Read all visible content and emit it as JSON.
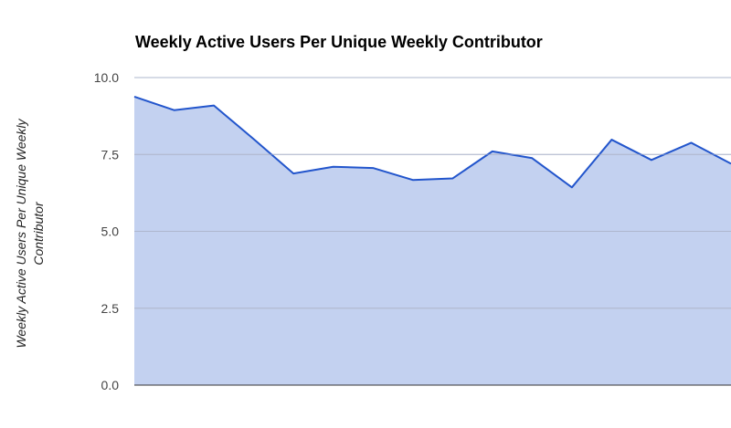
{
  "chart_data": {
    "type": "area",
    "title": "Weekly Active Users Per Unique Weekly Contributor",
    "xlabel": "",
    "ylabel": "Weekly Active Users Per Unique Weekly Contributor",
    "ylim": [
      0,
      10
    ],
    "yticks": [
      "0.0",
      "2.5",
      "5.0",
      "7.5",
      "10.0"
    ],
    "ytick_values": [
      0,
      2.5,
      5,
      7.5,
      10
    ],
    "grid": true,
    "legend": "none",
    "x": [
      1,
      2,
      3,
      4,
      5,
      6,
      7,
      8,
      9,
      10,
      11,
      12,
      13,
      14,
      15,
      16
    ],
    "series": [
      {
        "values": [
          9.38,
          8.94,
          9.09,
          8.0,
          6.88,
          7.1,
          7.06,
          6.67,
          6.72,
          7.6,
          7.38,
          6.43,
          7.98,
          7.32,
          7.88,
          7.2
        ],
        "line_color": "#2255cc",
        "fill_color": "#c3d1f0"
      }
    ],
    "colors": {
      "gridline": "#cccccc",
      "axis": "#333333"
    }
  }
}
